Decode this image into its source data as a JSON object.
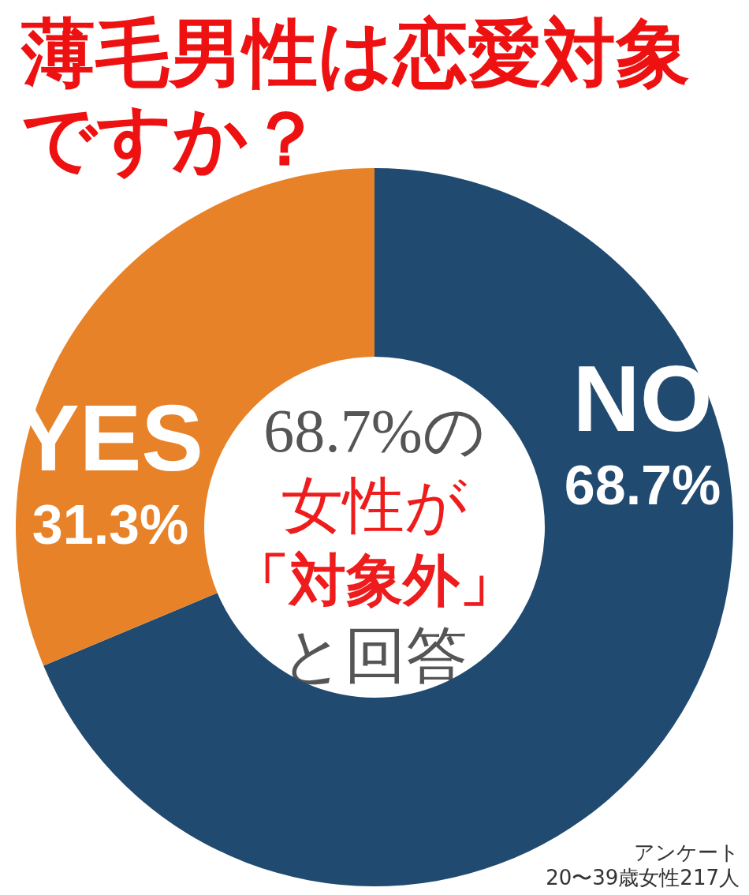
{
  "chart_data": {
    "type": "donut",
    "title": "薄毛男性は恋愛対象ですか？",
    "categories": [
      "NO",
      "YES"
    ],
    "values": [
      68.7,
      31.3
    ],
    "colors": [
      "#214a70",
      "#e88228"
    ],
    "value_labels": [
      "68.7%",
      "31.3%"
    ],
    "annotations": [
      "68.7%の",
      "女性が",
      "「対象外」",
      "と回答",
      "アンケート",
      "20〜39歳女性217人"
    ],
    "legend": false
  }
}
